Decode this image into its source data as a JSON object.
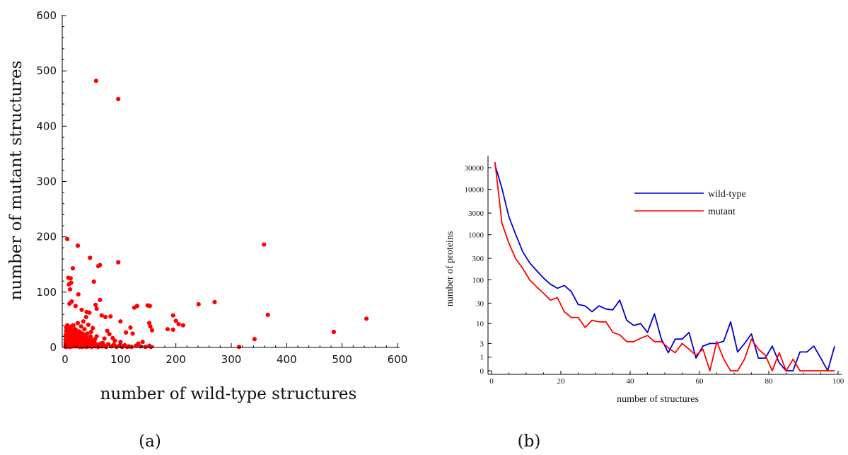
{
  "chart_data": [
    {
      "id": "a",
      "type": "scatter",
      "caption": "(a)",
      "title": "",
      "xlabel": "number of wild-type structures",
      "ylabel": "number of mutant structures",
      "xlim": [
        0,
        600
      ],
      "ylim": [
        0,
        600
      ],
      "xticks": [
        0,
        100,
        200,
        300,
        400,
        500,
        600
      ],
      "yticks": [
        0,
        100,
        200,
        300,
        400,
        500,
        600
      ],
      "grid": false,
      "colors": {
        "points": "#ff0000",
        "axis": "#000000"
      },
      "points": [
        [
          56,
          482
        ],
        [
          96,
          449
        ],
        [
          4,
          196
        ],
        [
          23,
          184
        ],
        [
          359,
          186
        ],
        [
          45,
          162
        ],
        [
          63,
          149
        ],
        [
          60,
          147
        ],
        [
          96,
          154
        ],
        [
          14,
          143
        ],
        [
          6,
          126
        ],
        [
          10,
          125
        ],
        [
          11,
          117
        ],
        [
          7,
          114
        ],
        [
          9,
          105
        ],
        [
          24,
          96
        ],
        [
          52,
          119
        ],
        [
          8,
          79
        ],
        [
          12,
          83
        ],
        [
          19,
          75
        ],
        [
          30,
          68
        ],
        [
          39,
          64
        ],
        [
          44,
          63
        ],
        [
          55,
          77
        ],
        [
          57,
          70
        ],
        [
          63,
          86
        ],
        [
          66,
          58
        ],
        [
          73,
          55
        ],
        [
          82,
          56
        ],
        [
          100,
          47
        ],
        [
          125,
          72
        ],
        [
          130,
          75
        ],
        [
          149,
          76
        ],
        [
          153,
          75
        ],
        [
          195,
          58
        ],
        [
          241,
          78
        ],
        [
          270,
          82
        ],
        [
          366,
          59
        ],
        [
          200,
          48
        ],
        [
          205,
          42
        ],
        [
          213,
          40
        ],
        [
          185,
          33
        ],
        [
          195,
          32
        ],
        [
          152,
          44
        ],
        [
          154,
          38
        ],
        [
          157,
          31
        ],
        [
          110,
          27
        ],
        [
          118,
          36
        ],
        [
          122,
          25
        ],
        [
          140,
          10
        ],
        [
          132,
          7
        ],
        [
          128,
          3
        ],
        [
          342,
          15
        ],
        [
          314,
          1
        ],
        [
          485,
          28
        ],
        [
          544,
          52
        ],
        [
          152,
          3
        ],
        [
          155,
          1
        ],
        [
          112,
          1
        ],
        [
          105,
          3
        ],
        [
          100,
          10
        ],
        [
          90,
          12
        ],
        [
          86,
          17
        ],
        [
          80,
          24
        ],
        [
          76,
          30
        ],
        [
          71,
          16
        ],
        [
          68,
          8
        ],
        [
          62,
          3
        ],
        [
          57,
          20
        ],
        [
          50,
          35
        ],
        [
          47,
          28
        ],
        [
          42,
          41
        ],
        [
          38,
          55
        ],
        [
          35,
          33
        ],
        [
          33,
          47
        ],
        [
          31,
          21
        ],
        [
          29,
          38
        ],
        [
          27,
          12
        ],
        [
          25,
          29
        ],
        [
          23,
          44
        ],
        [
          21,
          5
        ],
        [
          20,
          18
        ],
        [
          18,
          33
        ],
        [
          17,
          9
        ],
        [
          16,
          25
        ],
        [
          15,
          40
        ],
        [
          14,
          14
        ],
        [
          13,
          3
        ],
        [
          12,
          30
        ],
        [
          11,
          21
        ],
        [
          10,
          8
        ],
        [
          9,
          36
        ],
        [
          8,
          15
        ],
        [
          7,
          27
        ],
        [
          6,
          4
        ],
        [
          5,
          19
        ],
        [
          4,
          33
        ],
        [
          3,
          11
        ],
        [
          2,
          24
        ],
        [
          1,
          6
        ],
        [
          2,
          2
        ],
        [
          3,
          1
        ],
        [
          4,
          5
        ],
        [
          5,
          2
        ],
        [
          6,
          9
        ],
        [
          7,
          3
        ],
        [
          8,
          6
        ],
        [
          9,
          1
        ],
        [
          10,
          12
        ],
        [
          11,
          4
        ],
        [
          12,
          8
        ],
        [
          13,
          16
        ],
        [
          14,
          2
        ],
        [
          15,
          7
        ],
        [
          16,
          11
        ],
        [
          17,
          3
        ],
        [
          18,
          14
        ],
        [
          19,
          6
        ],
        [
          20,
          9
        ],
        [
          21,
          2
        ],
        [
          22,
          13
        ],
        [
          23,
          7
        ],
        [
          24,
          4
        ],
        [
          25,
          10
        ],
        [
          26,
          1
        ],
        [
          27,
          5
        ],
        [
          28,
          16
        ],
        [
          29,
          3
        ],
        [
          30,
          8
        ],
        [
          31,
          1
        ],
        [
          32,
          11
        ],
        [
          33,
          4
        ],
        [
          34,
          7
        ],
        [
          35,
          2
        ],
        [
          36,
          12
        ],
        [
          37,
          5
        ],
        [
          38,
          9
        ],
        [
          39,
          1
        ],
        [
          40,
          6
        ],
        [
          41,
          3
        ],
        [
          42,
          10
        ],
        [
          43,
          2
        ],
        [
          44,
          7
        ],
        [
          45,
          4
        ],
        [
          46,
          13
        ],
        [
          48,
          1
        ],
        [
          49,
          6
        ],
        [
          51,
          3
        ],
        [
          53,
          9
        ],
        [
          55,
          2
        ],
        [
          58,
          5
        ],
        [
          60,
          1
        ],
        [
          64,
          7
        ],
        [
          67,
          2
        ],
        [
          70,
          4
        ],
        [
          74,
          1
        ],
        [
          78,
          6
        ],
        [
          84,
          2
        ],
        [
          88,
          5
        ],
        [
          93,
          1
        ],
        [
          98,
          3
        ],
        [
          103,
          1
        ],
        [
          108,
          4
        ],
        [
          115,
          2
        ],
        [
          120,
          1
        ],
        [
          136,
          2
        ],
        [
          145,
          1
        ],
        [
          2,
          30
        ],
        [
          3,
          20
        ],
        [
          4,
          40
        ],
        [
          5,
          13
        ],
        [
          6,
          22
        ],
        [
          7,
          35
        ],
        [
          8,
          10
        ],
        [
          9,
          18
        ],
        [
          10,
          28
        ],
        [
          11,
          38
        ],
        [
          12,
          15
        ],
        [
          13,
          24
        ],
        [
          14,
          31
        ],
        [
          15,
          5
        ],
        [
          16,
          17
        ],
        [
          17,
          26
        ],
        [
          18,
          2
        ],
        [
          19,
          22
        ],
        [
          20,
          31
        ],
        [
          22,
          20
        ],
        [
          24,
          17
        ],
        [
          26,
          22
        ],
        [
          28,
          27
        ],
        [
          30,
          16
        ],
        [
          32,
          25
        ],
        [
          34,
          19
        ],
        [
          36,
          22
        ],
        [
          38,
          18
        ],
        [
          40,
          25
        ],
        [
          43,
          15
        ],
        [
          46,
          20
        ],
        [
          50,
          12
        ],
        [
          54,
          15
        ],
        [
          1,
          1
        ],
        [
          1,
          3
        ],
        [
          1,
          9
        ],
        [
          2,
          12
        ],
        [
          3,
          16
        ],
        [
          1,
          14
        ],
        [
          2,
          18
        ],
        [
          3,
          28
        ],
        [
          1,
          22
        ],
        [
          2,
          36
        ],
        [
          5,
          30
        ],
        [
          6,
          14
        ],
        [
          7,
          8
        ],
        [
          8,
          22
        ],
        [
          9,
          28
        ],
        [
          10,
          3
        ],
        [
          11,
          16
        ],
        [
          12,
          24
        ],
        [
          13,
          10
        ],
        [
          14,
          20
        ],
        [
          15,
          28
        ],
        [
          16,
          4
        ],
        [
          17,
          20
        ],
        [
          18,
          8
        ],
        [
          19,
          12
        ],
        [
          20,
          26
        ],
        [
          21,
          14
        ],
        [
          22,
          5
        ],
        [
          23,
          22
        ],
        [
          24,
          10
        ],
        [
          25,
          18
        ],
        [
          26,
          12
        ],
        [
          27,
          24
        ],
        [
          28,
          8
        ],
        [
          29,
          14
        ],
        [
          30,
          22
        ],
        [
          31,
          10
        ],
        [
          32,
          18
        ],
        [
          33,
          8
        ],
        [
          34,
          14
        ],
        [
          35,
          12
        ],
        [
          36,
          6
        ],
        [
          37,
          16
        ],
        [
          38,
          10
        ],
        [
          39,
          14
        ],
        [
          40,
          12
        ],
        [
          41,
          8
        ],
        [
          43,
          12
        ],
        [
          45,
          10
        ],
        [
          47,
          14
        ]
      ]
    },
    {
      "id": "b",
      "type": "line",
      "caption": "(b)",
      "title": "",
      "xlabel": "number of structures",
      "ylabel": "number of proteins",
      "xlim": [
        0,
        100
      ],
      "xticks": [
        0,
        20,
        40,
        60,
        80,
        100
      ],
      "yscale": "log(1+y)",
      "yticks": [
        0,
        1,
        3,
        10,
        30,
        100,
        300,
        1000,
        3000,
        10000,
        30000
      ],
      "ytick_labels": [
        "0",
        "1",
        "3",
        "10",
        "30",
        "100",
        "300",
        "1000",
        "3000",
        "10000",
        "30000"
      ],
      "grid": false,
      "legend_position": "upper-right",
      "x": [
        1,
        3,
        5,
        7,
        9,
        11,
        13,
        15,
        17,
        19,
        21,
        23,
        25,
        27,
        29,
        31,
        33,
        35,
        37,
        39,
        41,
        43,
        45,
        47,
        49,
        51,
        53,
        55,
        57,
        59,
        61,
        63,
        65,
        67,
        69,
        71,
        73,
        75,
        77,
        79,
        81,
        83,
        85,
        87,
        89,
        91,
        93,
        95,
        97,
        99
      ],
      "series": [
        {
          "name": "wild-type",
          "color": "#0000cc",
          "values": [
            35000,
            10500,
            2500,
            1000,
            420,
            240,
            160,
            110,
            80,
            65,
            75,
            55,
            28,
            26,
            19,
            26,
            22,
            21,
            35,
            12,
            9,
            10,
            6,
            17,
            4,
            1.5,
            4,
            4,
            6,
            0.9,
            2.5,
            3,
            3,
            3.5,
            11,
            1.6,
            3,
            5.5,
            0.9,
            0.9,
            2.5,
            0.5,
            0,
            0,
            1.6,
            1.6,
            2.5,
            0.9,
            0,
            2.5
          ]
        },
        {
          "name": "mutant",
          "color": "#ff0000",
          "values": [
            40000,
            1800,
            650,
            290,
            180,
            100,
            70,
            50,
            35,
            40,
            19,
            14,
            14,
            8,
            12,
            11,
            11,
            6,
            5.2,
            3.4,
            3.4,
            4.2,
            5,
            3.4,
            3.4,
            2.2,
            1.5,
            3,
            2,
            1.2,
            2,
            0,
            3.4,
            0.8,
            0,
            0,
            0.8,
            4,
            2,
            1.2,
            0,
            1.5,
            0,
            0.8,
            0,
            0,
            0,
            0,
            0,
            0
          ]
        }
      ]
    }
  ]
}
